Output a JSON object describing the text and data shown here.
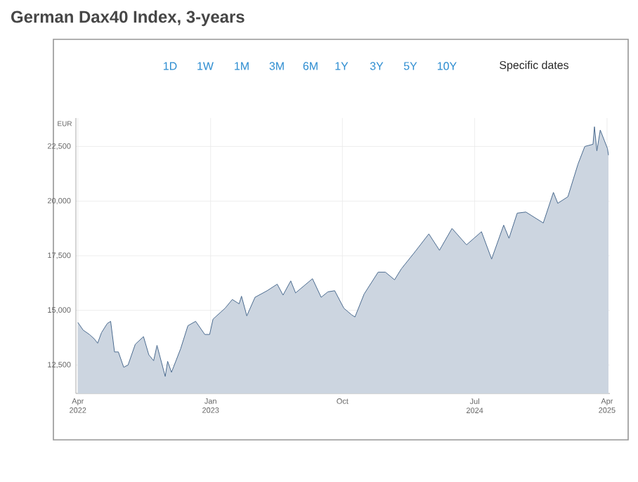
{
  "chart_data": {
    "type": "area",
    "title": "German Dax40 Index, 3-years",
    "ylabel": "EUR",
    "annotations": [
      "1D",
      "1W",
      "1M",
      "3M",
      "6M",
      "1Y",
      "3Y",
      "5Y",
      "10Y",
      "Specific dates"
    ],
    "x": [
      "2022-04-01",
      "2022-04-12",
      "2022-04-25",
      "2022-05-05",
      "2022-05-12",
      "2022-05-20",
      "2022-06-01",
      "2022-06-08",
      "2022-06-16",
      "2022-06-24",
      "2022-07-05",
      "2022-07-14",
      "2022-07-29",
      "2022-08-15",
      "2022-08-26",
      "2022-09-05",
      "2022-09-12",
      "2022-09-29",
      "2022-10-04",
      "2022-10-12",
      "2022-10-31",
      "2022-11-15",
      "2022-12-01",
      "2022-12-20",
      "2022-12-30",
      "2023-01-06",
      "2023-01-31",
      "2023-02-15",
      "2023-03-01",
      "2023-03-06",
      "2023-03-17",
      "2023-04-03",
      "2023-04-28",
      "2023-05-19",
      "2023-05-31",
      "2023-06-16",
      "2023-06-26",
      "2023-07-31",
      "2023-08-18",
      "2023-09-01",
      "2023-09-15",
      "2023-10-04",
      "2023-10-20",
      "2023-10-27",
      "2023-11-15",
      "2023-12-14",
      "2023-12-29",
      "2024-01-17",
      "2024-01-31",
      "2024-02-29",
      "2024-03-28",
      "2024-04-19",
      "2024-05-15",
      "2024-06-14",
      "2024-07-15",
      "2024-08-05",
      "2024-08-30",
      "2024-09-10",
      "2024-09-27",
      "2024-10-15",
      "2024-11-20",
      "2024-12-11",
      "2024-12-20",
      "2025-01-10",
      "2025-01-31",
      "2025-02-14",
      "2025-03-03",
      "2025-03-06",
      "2025-03-11",
      "2025-03-18",
      "2025-03-26",
      "2025-04-02",
      "2025-04-04"
    ],
    "series": [
      {
        "color": "#4a6a8f",
        "values": [
          14450,
          14100,
          13900,
          13700,
          13500,
          13980,
          14400,
          14500,
          13100,
          13100,
          12400,
          12500,
          13450,
          13800,
          12970,
          12700,
          13400,
          11980,
          12670,
          12170,
          13250,
          14300,
          14500,
          13900,
          13900,
          14600,
          15100,
          15500,
          15300,
          15650,
          14750,
          15600,
          15900,
          16200,
          15700,
          16350,
          15800,
          16450,
          15600,
          15850,
          15900,
          15100,
          14800,
          14700,
          15750,
          16750,
          16750,
          16400,
          16900,
          17700,
          18500,
          17750,
          18750,
          18000,
          18600,
          17350,
          18900,
          18300,
          19450,
          19500,
          19000,
          20400,
          19900,
          20200,
          21700,
          22500,
          22600,
          23400,
          22300,
          23250,
          22800,
          22400,
          22100
        ]
      }
    ],
    "xlim": [
      "2022-03-28",
      "2025-04-07"
    ],
    "xticks": [
      {
        "value": "2022-04-01",
        "label": "Apr 2022"
      },
      {
        "value": "2023-01-01",
        "label": "Jan 2023"
      },
      {
        "value": "2023-10-01",
        "label": "Oct"
      },
      {
        "value": "2024-07-01",
        "label": "Jul 2024"
      },
      {
        "value": "2025-04-01",
        "label": "Apr 2025"
      }
    ],
    "ylim": [
      11200,
      23800
    ],
    "yticks": [
      {
        "value": 12500,
        "label": "12,500"
      },
      {
        "value": 15000,
        "label": "15,000"
      },
      {
        "value": 17500,
        "label": "17,500"
      },
      {
        "value": 20000,
        "label": "20,000"
      },
      {
        "value": 22500,
        "label": "22,500"
      }
    ],
    "grid": true
  }
}
